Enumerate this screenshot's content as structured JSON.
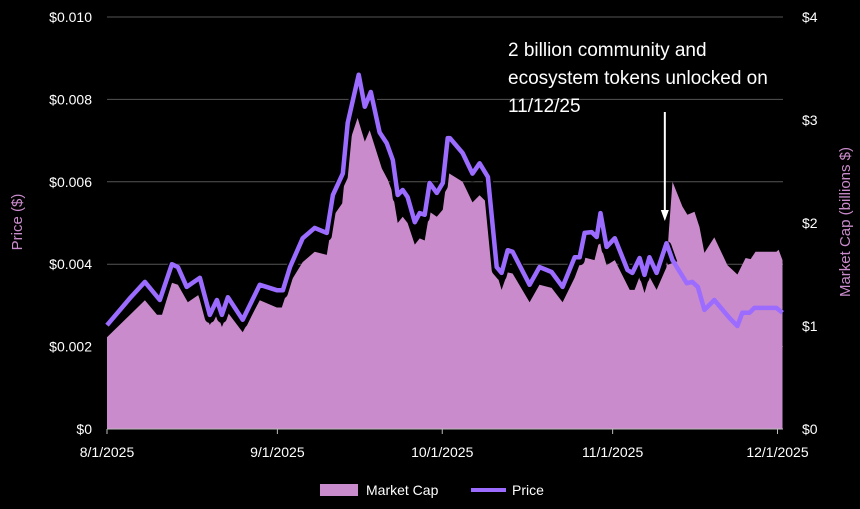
{
  "chart_data": {
    "type": "area+line",
    "x_unit": "days since 8/1/2025",
    "xlim": [
      0,
      123
    ],
    "x_ticks": [
      {
        "day": 0,
        "label": "8/1/2025"
      },
      {
        "day": 31,
        "label": "9/1/2025"
      },
      {
        "day": 61,
        "label": "10/1/2025"
      },
      {
        "day": 92,
        "label": "11/1/2025"
      },
      {
        "day": 122,
        "label": "12/1/2025"
      }
    ],
    "y_left": {
      "label": "Price ($)",
      "lim": [
        0,
        0.01
      ],
      "ticks": [
        {
          "v": 0,
          "label": "$0"
        },
        {
          "v": 0.002,
          "label": "$0.002"
        },
        {
          "v": 0.004,
          "label": "$0.004"
        },
        {
          "v": 0.006,
          "label": "$0.006"
        },
        {
          "v": 0.008,
          "label": "$0.008"
        },
        {
          "v": 0.01,
          "label": "$0.010"
        }
      ]
    },
    "y_right": {
      "label": "Market Cap (billions $)",
      "lim": [
        0,
        4
      ],
      "ticks": [
        {
          "v": 0,
          "label": "$0"
        },
        {
          "v": 1,
          "label": "$1"
        },
        {
          "v": 2,
          "label": "$2"
        },
        {
          "v": 3,
          "label": "$3"
        },
        {
          "v": 4,
          "label": "$4"
        }
      ]
    },
    "grid": true,
    "legend_position": "bottom",
    "series": [
      {
        "name": "Market Cap",
        "type": "area",
        "axis": "right",
        "color": "#c98bcb",
        "points": [
          [
            0,
            0.89
          ],
          [
            4.2,
            1.11
          ],
          [
            6.9,
            1.25
          ],
          [
            9.1,
            1.11
          ],
          [
            10,
            1.11
          ],
          [
            11.8,
            1.42
          ],
          [
            12.9,
            1.4
          ],
          [
            14.7,
            1.23
          ],
          [
            16.6,
            1.3
          ],
          [
            18.7,
            1.01
          ],
          [
            20,
            1.13
          ],
          [
            20.9,
            0.99
          ],
          [
            22,
            1.13
          ],
          [
            24.7,
            0.94
          ],
          [
            27.8,
            1.25
          ],
          [
            30.9,
            1.18
          ],
          [
            31.8,
            1.18
          ],
          [
            33.3,
            1.42
          ],
          [
            35.6,
            1.62
          ],
          [
            37.8,
            1.72
          ],
          [
            40,
            1.69
          ],
          [
            41.1,
            2.06
          ],
          [
            42.8,
            2.19
          ],
          [
            43.8,
            2.73
          ],
          [
            45.6,
            3.02
          ],
          [
            46.9,
            2.79
          ],
          [
            47.8,
            2.9
          ],
          [
            50,
            2.53
          ],
          [
            51.1,
            2.42
          ],
          [
            52,
            2.29
          ],
          [
            52.9,
            2.0
          ],
          [
            53.8,
            2.06
          ],
          [
            54.7,
            2.0
          ],
          [
            56,
            1.79
          ],
          [
            56.9,
            1.85
          ],
          [
            57.8,
            1.83
          ],
          [
            58.7,
            2.11
          ],
          [
            60,
            2.06
          ],
          [
            61.1,
            2.13
          ],
          [
            62,
            2.49
          ],
          [
            64.7,
            2.4
          ],
          [
            66.5,
            2.2
          ],
          [
            67.8,
            2.27
          ],
          [
            69.1,
            2.2
          ],
          [
            70.2,
            1.9
          ],
          [
            70.9,
            1.51
          ],
          [
            71.8,
            1.35
          ],
          [
            72.9,
            1.52
          ],
          [
            73.8,
            1.51
          ],
          [
            76.9,
            1.23
          ],
          [
            78.7,
            1.4
          ],
          [
            80.9,
            1.37
          ],
          [
            82.9,
            1.23
          ],
          [
            85.1,
            1.47
          ],
          [
            86.5,
            1.67
          ],
          [
            88.7,
            1.64
          ],
          [
            89.6,
            1.83
          ],
          [
            90.9,
            1.59
          ],
          [
            92.4,
            1.64
          ],
          [
            95.1,
            1.35
          ],
          [
            96,
            1.35
          ],
          [
            96.9,
            1.48
          ],
          [
            97.8,
            1.32
          ],
          [
            98.7,
            1.48
          ],
          [
            100,
            1.35
          ],
          [
            101.8,
            1.57
          ],
          [
            102.2,
            1.9
          ],
          [
            102.9,
            2.4
          ],
          [
            104.7,
            2.16
          ],
          [
            105.6,
            2.08
          ],
          [
            106.9,
            2.11
          ],
          [
            107.8,
            1.96
          ],
          [
            108.7,
            1.71
          ],
          [
            110.5,
            1.86
          ],
          [
            112.9,
            1.59
          ],
          [
            114.7,
            1.5
          ],
          [
            116.2,
            1.66
          ],
          [
            117.1,
            1.65
          ],
          [
            118,
            1.72
          ],
          [
            121.8,
            1.72
          ],
          [
            122.2,
            1.74
          ],
          [
            122.9,
            1.64
          ]
        ]
      },
      {
        "name": "Price",
        "type": "line",
        "axis": "left",
        "color": "#9b6cff",
        "points": [
          [
            0,
            0.00252
          ],
          [
            4.2,
            0.00318
          ],
          [
            6.9,
            0.00357
          ],
          [
            9.6,
            0.00313
          ],
          [
            11.8,
            0.004
          ],
          [
            12.9,
            0.00393
          ],
          [
            14.5,
            0.00345
          ],
          [
            16.9,
            0.00367
          ],
          [
            18.7,
            0.00277
          ],
          [
            20,
            0.00313
          ],
          [
            20.9,
            0.00277
          ],
          [
            22,
            0.0032
          ],
          [
            24.7,
            0.00265
          ],
          [
            27.8,
            0.0035
          ],
          [
            30.9,
            0.00337
          ],
          [
            32,
            0.00337
          ],
          [
            33.3,
            0.00393
          ],
          [
            35.6,
            0.00463
          ],
          [
            37.8,
            0.00488
          ],
          [
            40,
            0.00476
          ],
          [
            41.1,
            0.00568
          ],
          [
            42.9,
            0.0062
          ],
          [
            43.8,
            0.00743
          ],
          [
            45.8,
            0.0086
          ],
          [
            46.9,
            0.00782
          ],
          [
            48,
            0.00818
          ],
          [
            49.6,
            0.0072
          ],
          [
            50.9,
            0.00694
          ],
          [
            52,
            0.00653
          ],
          [
            52.9,
            0.00568
          ],
          [
            53.8,
            0.0058
          ],
          [
            54.7,
            0.00563
          ],
          [
            56,
            0.00502
          ],
          [
            56.9,
            0.00524
          ],
          [
            57.8,
            0.0052
          ],
          [
            58.7,
            0.00597
          ],
          [
            60,
            0.00573
          ],
          [
            61.1,
            0.00597
          ],
          [
            62,
            0.00706
          ],
          [
            62.4,
            0.00706
          ],
          [
            64.7,
            0.0067
          ],
          [
            66.5,
            0.0062
          ],
          [
            67.8,
            0.00645
          ],
          [
            69.3,
            0.00612
          ],
          [
            70.9,
            0.00393
          ],
          [
            71.8,
            0.00379
          ],
          [
            72.9,
            0.00434
          ],
          [
            73.8,
            0.0043
          ],
          [
            76.9,
            0.0035
          ],
          [
            78.7,
            0.00393
          ],
          [
            80.9,
            0.00381
          ],
          [
            82.9,
            0.00345
          ],
          [
            85.1,
            0.00417
          ],
          [
            86,
            0.00417
          ],
          [
            86.9,
            0.00476
          ],
          [
            88.2,
            0.00478
          ],
          [
            89.1,
            0.00466
          ],
          [
            89.8,
            0.00524
          ],
          [
            90.9,
            0.00442
          ],
          [
            92.4,
            0.00463
          ],
          [
            94.7,
            0.00386
          ],
          [
            95.6,
            0.00379
          ],
          [
            96.9,
            0.00415
          ],
          [
            97.8,
            0.00374
          ],
          [
            98.7,
            0.00417
          ],
          [
            100,
            0.00379
          ],
          [
            101.8,
            0.00451
          ],
          [
            102.9,
            0.0041
          ],
          [
            105.5,
            0.00354
          ],
          [
            106.5,
            0.00357
          ],
          [
            107.5,
            0.00345
          ],
          [
            108.7,
            0.00289
          ],
          [
            110.5,
            0.00313
          ],
          [
            113.3,
            0.00269
          ],
          [
            114.7,
            0.0025
          ],
          [
            115.6,
            0.00282
          ],
          [
            116.9,
            0.00282
          ],
          [
            117.8,
            0.00294
          ],
          [
            121.8,
            0.00294
          ],
          [
            122.9,
            0.00282
          ]
        ]
      }
    ],
    "annotation": {
      "lines": [
        "2 billion community and",
        "ecosystem tokens unlocked on",
        "11/12/25"
      ],
      "arrow_day": 101.5
    }
  }
}
